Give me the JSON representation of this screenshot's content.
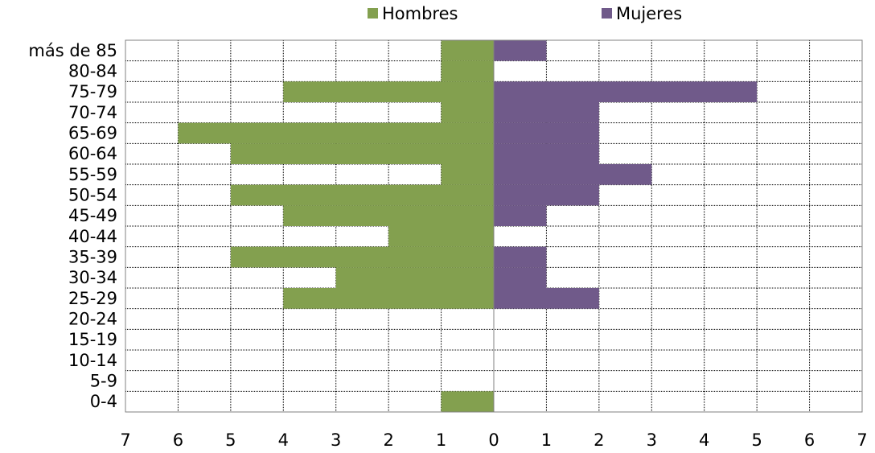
{
  "chart_data": {
    "type": "pyramid",
    "categories": [
      "más de 85",
      "80-84",
      "75-79",
      "70-74",
      "65-69",
      "60-64",
      "55-59",
      "50-54",
      "45-49",
      "40-44",
      "35-39",
      "30-34",
      "25-29",
      "20-24",
      "15-19",
      "10-14",
      "5-9",
      "0-4"
    ],
    "series": [
      {
        "name": "Hombres",
        "color": "#83a04f",
        "values": [
          -1,
          -1,
          -4,
          -1,
          -6,
          -5,
          -1,
          -5,
          -4,
          -2,
          -5,
          -3,
          -4,
          0,
          0,
          0,
          0,
          -1
        ]
      },
      {
        "name": "Mujeres",
        "color": "#705a8a",
        "values": [
          1,
          0,
          5,
          2,
          2,
          2,
          3,
          2,
          1,
          0,
          1,
          1,
          2,
          0,
          0,
          0,
          0,
          0
        ]
      }
    ],
    "xlim": [
      -7,
      7
    ],
    "xticks": [
      {
        "value": -7,
        "label": "7"
      },
      {
        "value": -6,
        "label": "6"
      },
      {
        "value": -5,
        "label": "5"
      },
      {
        "value": -4,
        "label": "4"
      },
      {
        "value": -3,
        "label": "3"
      },
      {
        "value": -2,
        "label": "2"
      },
      {
        "value": -1,
        "label": "1"
      },
      0,
      1,
      2,
      3,
      4,
      5,
      6,
      7
    ],
    "grid": true,
    "legend": "top"
  }
}
